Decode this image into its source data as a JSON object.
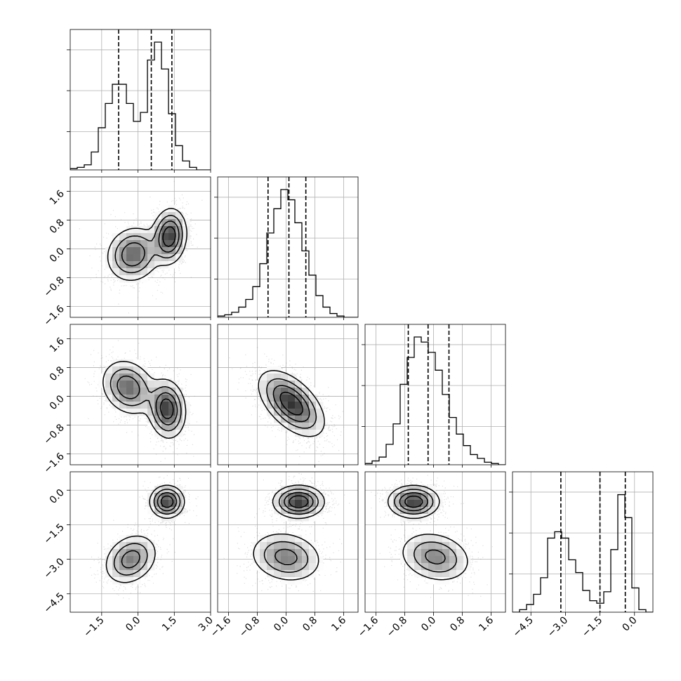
{
  "chart_data": {
    "type": "corner",
    "n_params": 4,
    "parameters": [
      {
        "index": 0,
        "range": [
          -2.8,
          3.0
        ],
        "ticks": [
          -1.5,
          0.0,
          1.5,
          3.0
        ],
        "tick_labels": [
          "−1.5",
          "0.0",
          "1.5",
          "3.0"
        ],
        "quantiles": [
          -0.8,
          0.55,
          1.4
        ],
        "hist_bins": [
          0.01,
          0.02,
          0.04,
          0.14,
          0.33,
          0.52,
          0.67,
          0.67,
          0.52,
          0.38,
          0.45,
          0.86,
          1.0,
          0.79,
          0.44,
          0.19,
          0.07,
          0.02,
          0.0,
          0.0
        ]
      },
      {
        "index": 1,
        "range": [
          -1.9,
          2.0
        ],
        "ticks": [
          -1.6,
          -0.8,
          0.0,
          0.8,
          1.6
        ],
        "tick_labels": [
          "−1.6",
          "−0.8",
          "0.0",
          "0.8",
          "1.6"
        ],
        "quantiles": [
          -0.5,
          0.08,
          0.55
        ],
        "hist_bins": [
          0.01,
          0.02,
          0.04,
          0.08,
          0.14,
          0.24,
          0.42,
          0.66,
          0.85,
          1.0,
          0.92,
          0.74,
          0.52,
          0.33,
          0.17,
          0.08,
          0.03,
          0.01,
          0.0,
          0.0
        ]
      },
      {
        "index": 2,
        "range": [
          -1.9,
          2.0
        ],
        "ticks": [
          -1.6,
          -0.8,
          0.0,
          0.8,
          1.6
        ],
        "tick_labels": [
          "−1.6",
          "−0.8",
          "0.0",
          "0.8",
          "1.6"
        ],
        "quantiles": [
          -0.7,
          -0.15,
          0.43
        ],
        "hist_bins": [
          0.01,
          0.03,
          0.06,
          0.16,
          0.32,
          0.63,
          0.84,
          1.0,
          0.96,
          0.88,
          0.74,
          0.55,
          0.37,
          0.24,
          0.15,
          0.08,
          0.05,
          0.02,
          0.01,
          0.0
        ]
      },
      {
        "index": 3,
        "range": [
          -5.3,
          0.8
        ],
        "ticks": [
          -4.5,
          -3.0,
          -1.5,
          0.0
        ],
        "tick_labels": [
          "−4.5",
          "−3.0",
          "−1.5",
          "0.0"
        ],
        "quantiles": [
          -3.2,
          -1.5,
          -0.4
        ],
        "hist_bins": [
          0.0,
          0.02,
          0.06,
          0.14,
          0.27,
          0.58,
          0.63,
          0.58,
          0.41,
          0.31,
          0.17,
          0.09,
          0.07,
          0.16,
          0.49,
          0.92,
          0.74,
          0.19,
          0.02,
          0.0
        ]
      }
    ],
    "pairs": [
      {
        "x": 0,
        "y": 1,
        "modes": [
          {
            "cx": -0.2,
            "cy": -0.15,
            "sx": 0.55,
            "sy": 0.38,
            "rho": 0.1,
            "w": 1.0
          },
          {
            "cx": 1.3,
            "cy": 0.35,
            "sx": 0.35,
            "sy": 0.38,
            "rho": 0.1,
            "w": 1.3
          }
        ]
      },
      {
        "x": 0,
        "y": 2,
        "modes": [
          {
            "cx": -0.4,
            "cy": 0.25,
            "sx": 0.55,
            "sy": 0.38,
            "rho": -0.2,
            "w": 1.0
          },
          {
            "cx": 1.2,
            "cy": -0.35,
            "sx": 0.38,
            "sy": 0.4,
            "rho": -0.1,
            "w": 1.3
          }
        ]
      },
      {
        "x": 0,
        "y": 3,
        "modes": [
          {
            "cx": -0.3,
            "cy": -3.0,
            "sx": 0.55,
            "sy": 0.55,
            "rho": 0.25,
            "w": 1.0
          },
          {
            "cx": 1.2,
            "cy": -0.5,
            "sx": 0.35,
            "sy": 0.35,
            "rho": 0.0,
            "w": 1.5
          }
        ]
      },
      {
        "x": 1,
        "y": 2,
        "modes": [
          {
            "cx": 0.15,
            "cy": -0.2,
            "sx": 0.45,
            "sy": 0.45,
            "rho": -0.55,
            "w": 1.0
          }
        ]
      },
      {
        "x": 1,
        "y": 3,
        "modes": [
          {
            "cx": 0.0,
            "cy": -2.9,
            "sx": 0.5,
            "sy": 0.55,
            "rho": -0.15,
            "w": 1.0
          },
          {
            "cx": 0.35,
            "cy": -0.5,
            "sx": 0.35,
            "sy": 0.35,
            "rho": 0.0,
            "w": 1.6
          }
        ]
      },
      {
        "x": 2,
        "y": 3,
        "modes": [
          {
            "cx": 0.05,
            "cy": -2.9,
            "sx": 0.5,
            "sy": 0.55,
            "rho": -0.2,
            "w": 1.0
          },
          {
            "cx": -0.55,
            "cy": -0.5,
            "sx": 0.35,
            "sy": 0.35,
            "rho": 0.0,
            "w": 1.6
          }
        ]
      }
    ],
    "grid": true,
    "colors": {
      "line": "#000000",
      "grid": "#b0b0b0",
      "scatter": "#808080"
    }
  }
}
